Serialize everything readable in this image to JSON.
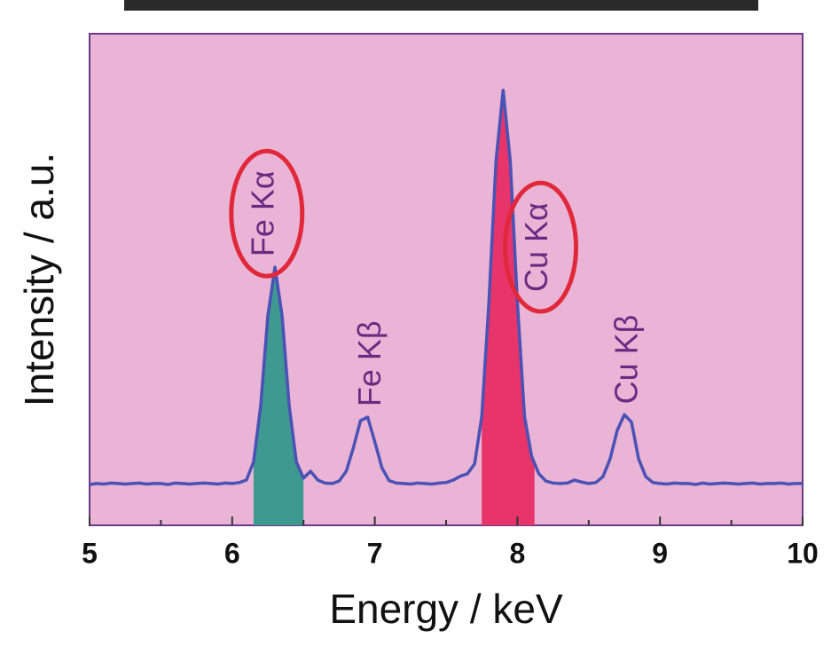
{
  "chart_data": {
    "type": "line",
    "xlabel": "Energy / keV",
    "ylabel": "Intensity / a.u.",
    "x": [
      5.0,
      5.05,
      5.1,
      5.15,
      5.2,
      5.25,
      5.3,
      5.35,
      5.4,
      5.45,
      5.5,
      5.55,
      5.6,
      5.65,
      5.7,
      5.75,
      5.8,
      5.85,
      5.9,
      5.95,
      6.0,
      6.05,
      6.1,
      6.15,
      6.2,
      6.25,
      6.3,
      6.35,
      6.4,
      6.45,
      6.5,
      6.55,
      6.6,
      6.65,
      6.7,
      6.75,
      6.8,
      6.85,
      6.9,
      6.95,
      7.0,
      7.05,
      7.1,
      7.15,
      7.2,
      7.25,
      7.3,
      7.35,
      7.4,
      7.45,
      7.5,
      7.55,
      7.6,
      7.65,
      7.7,
      7.75,
      7.8,
      7.85,
      7.9,
      7.95,
      8.0,
      8.05,
      8.1,
      8.15,
      8.2,
      8.25,
      8.3,
      8.35,
      8.4,
      8.45,
      8.5,
      8.55,
      8.6,
      8.65,
      8.7,
      8.75,
      8.8,
      8.85,
      8.9,
      8.95,
      9.0,
      9.05,
      9.1,
      9.15,
      9.2,
      9.25,
      9.3,
      9.35,
      9.4,
      9.45,
      9.5,
      9.55,
      9.6,
      9.65,
      9.7,
      9.75,
      9.8,
      9.85,
      9.9,
      9.95,
      10.0
    ],
    "values": [
      8.3,
      8.5,
      8.4,
      8.6,
      8.5,
      8.4,
      8.5,
      8.6,
      8.4,
      8.5,
      8.5,
      8.3,
      8.6,
      8.5,
      8.4,
      8.5,
      8.6,
      8.5,
      8.4,
      8.6,
      8.5,
      8.7,
      9.2,
      12.9,
      24.3,
      42.6,
      52.5,
      42.6,
      24.3,
      12.9,
      9.6,
      11,
      9.2,
      8.6,
      8.5,
      9,
      11,
      15.8,
      21.3,
      22,
      17,
      11.7,
      9.1,
      8.6,
      8.5,
      8.4,
      8.6,
      8.5,
      8.4,
      8.6,
      8.7,
      9.2,
      10,
      10.5,
      12.5,
      22.1,
      45.3,
      74.1,
      88.5,
      74.1,
      45.3,
      22.1,
      14,
      10.5,
      9,
      8.6,
      8.5,
      8.6,
      9.2,
      8.8,
      8.5,
      8.7,
      9.9,
      13.5,
      19.3,
      22.5,
      21,
      13.5,
      9.9,
      8.7,
      8.5,
      8.4,
      8.6,
      8.5,
      8.5,
      8.3,
      8.6,
      8.4,
      8.5,
      8.6,
      8.5,
      8.4,
      8.5,
      8.6,
      8.4,
      8.5,
      8.5,
      8.6,
      8.4,
      8.5,
      8.5
    ],
    "color": "#4a52b5",
    "xlim": [
      5,
      10
    ],
    "ylim": [
      0,
      100
    ],
    "xticks": [
      5,
      6,
      7,
      8,
      9,
      10
    ],
    "highlights": [
      {
        "from": 6.15,
        "to": 6.5,
        "color": "#3e9990"
      },
      {
        "from": 7.75,
        "to": 8.12,
        "color": "#e7346b"
      }
    ],
    "annotations": [
      {
        "text": "Fe Kα",
        "x": 6.23,
        "circled": true
      },
      {
        "text": "Fe Kβ",
        "x": 6.98,
        "circled": false
      },
      {
        "text": "Cu Kα",
        "x": 8.15,
        "circled": true
      },
      {
        "text": "Cu Kβ",
        "x": 8.78,
        "circled": false
      }
    ]
  }
}
